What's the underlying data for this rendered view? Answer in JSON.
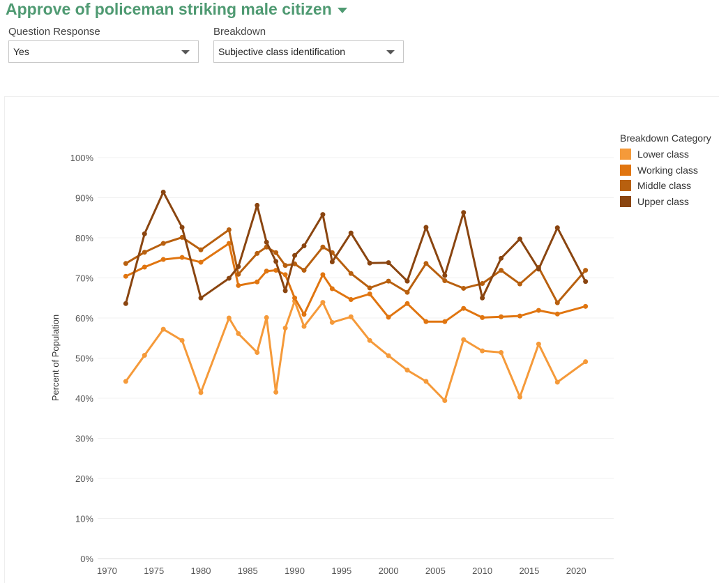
{
  "header": {
    "title": "Approve of policeman striking male citizen"
  },
  "filters": {
    "question_response": {
      "label": "Question Response",
      "value": "Yes"
    },
    "breakdown": {
      "label": "Breakdown",
      "value": "Subjective class identification"
    }
  },
  "legend": {
    "title": "Breakdown Category",
    "items": [
      {
        "label": "Lower class",
        "color": "#f59a3a"
      },
      {
        "label": "Working class",
        "color": "#e07510"
      },
      {
        "label": "Middle class",
        "color": "#b8600f"
      },
      {
        "label": "Upper class",
        "color": "#8a4510"
      }
    ]
  },
  "chart_data": {
    "type": "line",
    "ylabel": "Percent of Population",
    "xlabel": "",
    "ylim": [
      0,
      100
    ],
    "xlim": [
      1969,
      2024
    ],
    "y_ticks": [
      "0%",
      "10%",
      "20%",
      "30%",
      "40%",
      "50%",
      "60%",
      "70%",
      "80%",
      "90%",
      "100%"
    ],
    "x_ticks": [
      "1970",
      "1975",
      "1980",
      "1985",
      "1990",
      "1995",
      "2000",
      "2005",
      "2010",
      "2015",
      "2020"
    ],
    "grid": true,
    "legend_position": "right",
    "series": [
      {
        "name": "Lower class",
        "color": "#f59a3a",
        "points": [
          [
            1972,
            44.2
          ],
          [
            1974,
            50.7
          ],
          [
            1976,
            57.2
          ],
          [
            1978,
            54.4
          ],
          [
            1980,
            41.4
          ],
          [
            1983,
            60
          ],
          [
            1984,
            56.1
          ],
          [
            1986,
            51.4
          ],
          [
            1987,
            60.1
          ],
          [
            1988,
            41.5
          ],
          [
            1989,
            57.5
          ],
          [
            1990,
            64.2
          ],
          [
            1991,
            57.9
          ],
          [
            1993,
            63.9
          ],
          [
            1994,
            58.9
          ],
          [
            1996,
            60.3
          ],
          [
            1998,
            54.4
          ],
          [
            2000,
            50.6
          ],
          [
            2002,
            47
          ],
          [
            2004,
            44.2
          ],
          [
            2006,
            39.4
          ],
          [
            2008,
            54.6
          ],
          [
            2010,
            51.8
          ],
          [
            2012,
            51.4
          ],
          [
            2014,
            40.3
          ],
          [
            2016,
            53.5
          ],
          [
            2018,
            44
          ],
          [
            2021,
            49.1
          ]
        ]
      },
      {
        "name": "Working class",
        "color": "#e07510",
        "points": [
          [
            1972,
            70.4
          ],
          [
            1974,
            72.7
          ],
          [
            1976,
            74.6
          ],
          [
            1978,
            75.1
          ],
          [
            1980,
            73.9
          ],
          [
            1983,
            78.6
          ],
          [
            1984,
            68.1
          ],
          [
            1986,
            69
          ],
          [
            1987,
            71.7
          ],
          [
            1988,
            71.9
          ],
          [
            1989,
            70.8
          ],
          [
            1990,
            65
          ],
          [
            1991,
            60.9
          ],
          [
            1993,
            70.8
          ],
          [
            1994,
            67.3
          ],
          [
            1996,
            64.6
          ],
          [
            1998,
            66
          ],
          [
            2000,
            60.2
          ],
          [
            2002,
            63.6
          ],
          [
            2004,
            59.1
          ],
          [
            2006,
            59.1
          ],
          [
            2008,
            62.4
          ],
          [
            2010,
            60.1
          ],
          [
            2012,
            60.3
          ],
          [
            2014,
            60.5
          ],
          [
            2016,
            61.9
          ],
          [
            2018,
            61
          ],
          [
            2021,
            62.9
          ]
        ]
      },
      {
        "name": "Middle class",
        "color": "#b8600f",
        "points": [
          [
            1972,
            73.6
          ],
          [
            1974,
            76.4
          ],
          [
            1976,
            78.6
          ],
          [
            1978,
            80.1
          ],
          [
            1980,
            77
          ],
          [
            1983,
            82
          ],
          [
            1984,
            70.9
          ],
          [
            1986,
            76.1
          ],
          [
            1987,
            77.7
          ],
          [
            1988,
            76.3
          ],
          [
            1989,
            73.1
          ],
          [
            1990,
            73.5
          ],
          [
            1991,
            71.9
          ],
          [
            1993,
            77.7
          ],
          [
            1994,
            76.3
          ],
          [
            1996,
            71.1
          ],
          [
            1998,
            67.5
          ],
          [
            2000,
            69.2
          ],
          [
            2002,
            66.4
          ],
          [
            2004,
            73.6
          ],
          [
            2006,
            69.3
          ],
          [
            2008,
            67.4
          ],
          [
            2010,
            68.6
          ],
          [
            2012,
            71.9
          ],
          [
            2014,
            68.5
          ],
          [
            2016,
            72.6
          ],
          [
            2018,
            63.8
          ],
          [
            2021,
            71.9
          ]
        ]
      },
      {
        "name": "Upper class",
        "color": "#8a4510",
        "points": [
          [
            1972,
            63.6
          ],
          [
            1974,
            81
          ],
          [
            1976,
            91.4
          ],
          [
            1978,
            82.6
          ],
          [
            1980,
            65
          ],
          [
            1983,
            69.9
          ],
          [
            1984,
            72.8
          ],
          [
            1986,
            88.1
          ],
          [
            1987,
            78.9
          ],
          [
            1988,
            74.1
          ],
          [
            1989,
            66.8
          ],
          [
            1990,
            75.6
          ],
          [
            1991,
            78
          ],
          [
            1993,
            85.8
          ],
          [
            1994,
            74
          ],
          [
            1996,
            81.2
          ],
          [
            1998,
            73.7
          ],
          [
            2000,
            73.8
          ],
          [
            2002,
            69.2
          ],
          [
            2004,
            82.6
          ],
          [
            2006,
            70.6
          ],
          [
            2008,
            86.3
          ],
          [
            2010,
            65
          ],
          [
            2012,
            74.9
          ],
          [
            2014,
            79.7
          ],
          [
            2016,
            72.2
          ],
          [
            2018,
            82.5
          ],
          [
            2021,
            69.1
          ]
        ]
      }
    ]
  }
}
